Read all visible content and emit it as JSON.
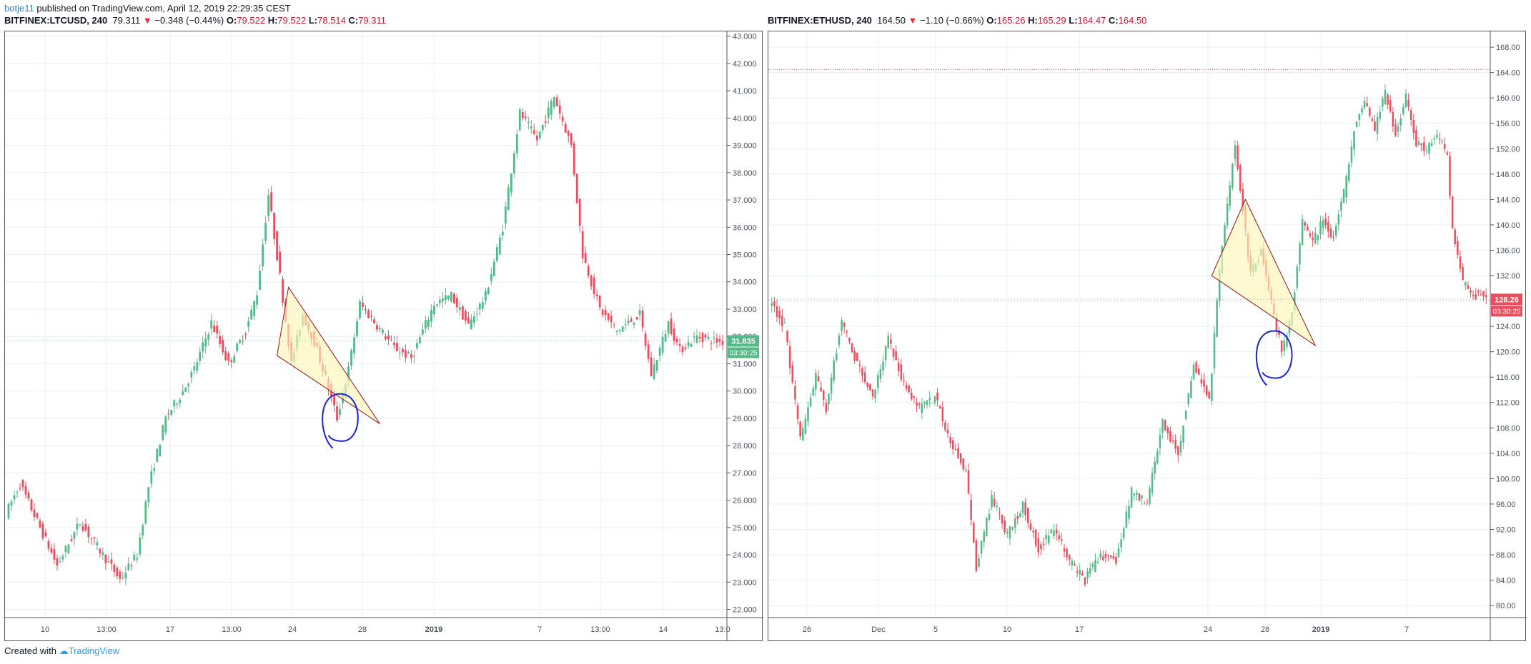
{
  "header": {
    "user": "botje11",
    "published_text": "published on TradingView.com, April 12, 2019 22:29:35 CEST"
  },
  "footer": {
    "created_with": "Created with",
    "brand": "TradingView"
  },
  "panes": [
    {
      "symbol": "BITFINEX:LTCUSD, 240",
      "last": "79.311",
      "change": "−0.348 (−0.44%)",
      "o_label": "O:",
      "o": "79.522",
      "h_label": "H:",
      "h": "79.522",
      "l_label": "L:",
      "l": "78.514",
      "c_label": "C:",
      "c": "79.311",
      "price_tag": "31.835",
      "timer_tag": "03:30:25"
    },
    {
      "symbol": "BITFINEX:ETHUSD, 240",
      "last": "164.50",
      "change": "−1.10 (−0.66%)",
      "o_label": "O:",
      "o": "165.26",
      "h_label": "H:",
      "h": "165.29",
      "l_label": "L:",
      "l": "164.47",
      "c_label": "C:",
      "c": "164.50",
      "price_tag": "128.26",
      "timer_tag": "03:30:25"
    }
  ],
  "colors": {
    "up": "#53b987",
    "down": "#eb4d5c",
    "grid": "#e8f0f3",
    "axis_text": "#4c525e",
    "triangle_fill": "#fff6b8",
    "triangle_stroke": "#8b1a1a",
    "circle": "#1c22d6",
    "price_line": "#e0313c"
  },
  "chart_data": [
    {
      "type": "candlestick",
      "symbol": "BITFINEX:LTCUSD",
      "interval": "240",
      "y_tick_labels": [
        "22.000",
        "23.000",
        "24.000",
        "25.000",
        "26.000",
        "27.000",
        "28.000",
        "29.000",
        "30.000",
        "31.000",
        "32.000",
        "33.000",
        "34.000",
        "35.000",
        "36.000",
        "37.000",
        "38.000",
        "39.000",
        "40.000",
        "41.000",
        "42.000",
        "43.000"
      ],
      "ylim": [
        21.7,
        43.2
      ],
      "x_tick_labels": [
        "10",
        "13:00",
        "17",
        "13:00",
        "24",
        "28",
        "2019",
        "7",
        "13:00",
        "14",
        "13:0"
      ],
      "bold_x_labels": [
        "2019"
      ],
      "scale": "linear",
      "grid": true,
      "anchors": [
        [
          0,
          25.5
        ],
        [
          5,
          26.6
        ],
        [
          12,
          25.0
        ],
        [
          18,
          23.6
        ],
        [
          26,
          25.2
        ],
        [
          34,
          24.0
        ],
        [
          40,
          23.1
        ],
        [
          46,
          24.0
        ],
        [
          50,
          26.5
        ],
        [
          56,
          29.0
        ],
        [
          62,
          30.0
        ],
        [
          66,
          30.8
        ],
        [
          72,
          32.5
        ],
        [
          78,
          31.0
        ],
        [
          84,
          32.2
        ],
        [
          88,
          33.6
        ],
        [
          92,
          37.2
        ],
        [
          96,
          34.2
        ],
        [
          100,
          31.0
        ],
        [
          104,
          32.8
        ],
        [
          108,
          31.8
        ],
        [
          112,
          30.5
        ],
        [
          116,
          29.0
        ],
        [
          120,
          30.8
        ],
        [
          124,
          33.2
        ],
        [
          130,
          32.4
        ],
        [
          136,
          31.6
        ],
        [
          142,
          31.2
        ],
        [
          150,
          33.2
        ],
        [
          156,
          33.5
        ],
        [
          162,
          32.4
        ],
        [
          168,
          33.5
        ],
        [
          174,
          36.0
        ],
        [
          180,
          40.2
        ],
        [
          186,
          39.2
        ],
        [
          192,
          40.8
        ],
        [
          198,
          39.0
        ],
        [
          202,
          35.0
        ],
        [
          208,
          33.0
        ],
        [
          214,
          32.2
        ],
        [
          222,
          32.8
        ],
        [
          226,
          30.6
        ],
        [
          232,
          32.5
        ],
        [
          236,
          31.5
        ],
        [
          242,
          32.0
        ],
        [
          250,
          31.8
        ]
      ],
      "n_candles": 251,
      "triangle": [
        [
          98,
          33.8
        ],
        [
          94,
          31.3
        ],
        [
          130,
          28.8
        ]
      ],
      "circle_center": [
        116,
        28.9
      ],
      "last_price": 31.835
    },
    {
      "type": "candlestick",
      "symbol": "BITFINEX:ETHUSD",
      "interval": "240",
      "y_tick_labels": [
        "80.00",
        "84.00",
        "88.00",
        "92.00",
        "96.00",
        "100.00",
        "104.00",
        "108.00",
        "112.00",
        "116.00",
        "120.00",
        "124.00",
        "128.00",
        "132.00",
        "136.00",
        "140.00",
        "144.00",
        "148.00",
        "152.00",
        "156.00",
        "160.00",
        "164.00",
        "168.00"
      ],
      "ylim": [
        78.1,
        170.6
      ],
      "x_tick_labels": [
        "26",
        "Dec",
        "5",
        "10",
        "17",
        "24",
        "28",
        "2019",
        "7"
      ],
      "bold_x_labels": [
        "2019"
      ],
      "scale": "linear",
      "grid": true,
      "anchors": [
        [
          0,
          128
        ],
        [
          6,
          124
        ],
        [
          12,
          106
        ],
        [
          18,
          116
        ],
        [
          22,
          111
        ],
        [
          28,
          125
        ],
        [
          34,
          118
        ],
        [
          40,
          113
        ],
        [
          46,
          122
        ],
        [
          52,
          115
        ],
        [
          58,
          111
        ],
        [
          64,
          113
        ],
        [
          70,
          106
        ],
        [
          76,
          101
        ],
        [
          80,
          86
        ],
        [
          86,
          97
        ],
        [
          92,
          91
        ],
        [
          98,
          96
        ],
        [
          104,
          89
        ],
        [
          110,
          92
        ],
        [
          116,
          87
        ],
        [
          122,
          84
        ],
        [
          128,
          88
        ],
        [
          134,
          87
        ],
        [
          140,
          98
        ],
        [
          146,
          96
        ],
        [
          152,
          109
        ],
        [
          158,
          104
        ],
        [
          164,
          118
        ],
        [
          170,
          112
        ],
        [
          174,
          133
        ],
        [
          180,
          153
        ],
        [
          186,
          132
        ],
        [
          190,
          136
        ],
        [
          194,
          128
        ],
        [
          198,
          120
        ],
        [
          202,
          126
        ],
        [
          206,
          141
        ],
        [
          210,
          137
        ],
        [
          214,
          141
        ],
        [
          218,
          138
        ],
        [
          222,
          145
        ],
        [
          226,
          155
        ],
        [
          230,
          159
        ],
        [
          234,
          155
        ],
        [
          238,
          161
        ],
        [
          242,
          154
        ],
        [
          246,
          160
        ],
        [
          250,
          153
        ],
        [
          254,
          152
        ],
        [
          258,
          154
        ],
        [
          262,
          151
        ],
        [
          264,
          139
        ],
        [
          268,
          131
        ],
        [
          272,
          129
        ],
        [
          276,
          129
        ]
      ],
      "n_candles": 277,
      "triangle": [
        [
          170,
          132
        ],
        [
          183,
          144
        ],
        [
          210,
          121
        ]
      ],
      "circle_center": [
        194,
        119
      ],
      "last_price": 128.26,
      "hline": 164.5
    }
  ]
}
